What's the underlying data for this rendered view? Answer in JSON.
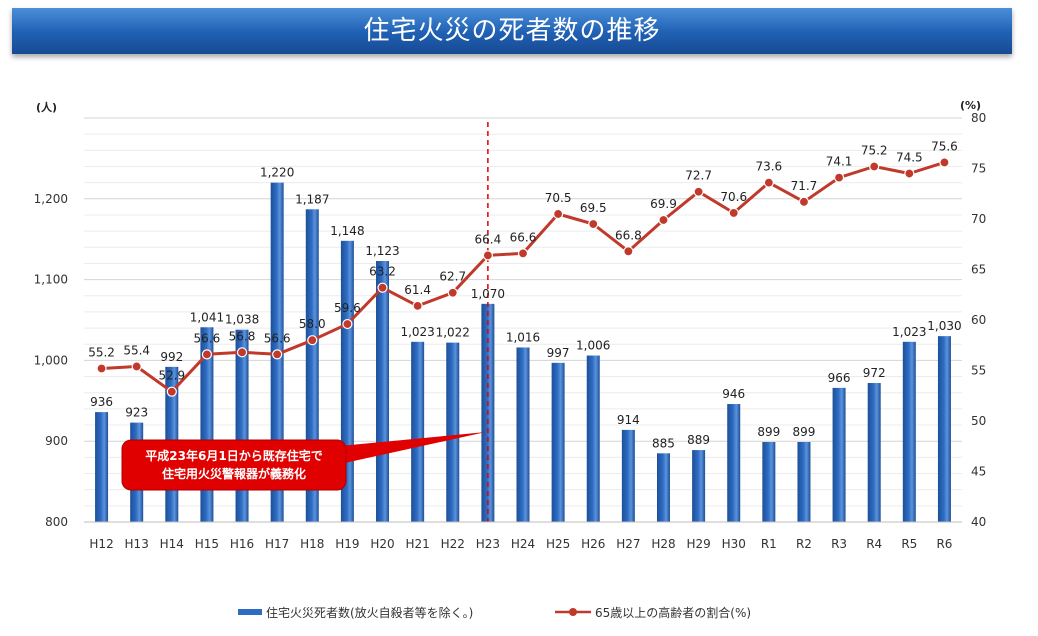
{
  "header": {
    "title": "住宅火災の死者数の推移"
  },
  "colors": {
    "bar": "#2e6cc2",
    "line": "#c0392b",
    "annotation": "#e00000",
    "banner": "#1f5fb3"
  },
  "chart_data": {
    "type": "bar",
    "categories": [
      "H12",
      "H13",
      "H14",
      "H15",
      "H16",
      "H17",
      "H18",
      "H19",
      "H20",
      "H21",
      "H22",
      "H23",
      "H24",
      "H25",
      "H26",
      "H27",
      "H28",
      "H29",
      "H30",
      "R1",
      "R2",
      "R3",
      "R4",
      "R5",
      "R6"
    ],
    "series": [
      {
        "name": "住宅火災死者数(放火自殺者等を除く。)",
        "type": "bar",
        "axis": "left",
        "values": [
          936,
          923,
          992,
          1041,
          1038,
          1220,
          1187,
          1148,
          1123,
          1023,
          1022,
          1070,
          1016,
          997,
          1006,
          914,
          885,
          889,
          946,
          899,
          899,
          966,
          972,
          1023,
          1030
        ],
        "labels": [
          "936",
          "923",
          "992",
          "1,041",
          "1,038",
          "1,220",
          "1,187",
          "1,148",
          "1,123",
          "1,023",
          "1,022",
          "1,070",
          "1,016",
          "997",
          "1,006",
          "914",
          "885",
          "889",
          "946",
          "899",
          "899",
          "966",
          "972",
          "1,023",
          "1,030"
        ]
      },
      {
        "name": "65歳以上の高齢者の割合(%)",
        "type": "line",
        "axis": "right",
        "values": [
          55.2,
          55.4,
          52.9,
          56.6,
          56.8,
          56.6,
          58.0,
          59.6,
          63.2,
          61.4,
          62.7,
          66.4,
          66.6,
          70.5,
          69.5,
          66.8,
          69.9,
          72.7,
          70.6,
          73.6,
          71.7,
          74.1,
          75.2,
          74.5,
          75.6
        ],
        "labels": [
          "55.2",
          "55.4",
          "52.9",
          "56.6",
          "56.8",
          "56.6",
          "58.0",
          "59.6",
          "63.2",
          "61.4",
          "62.7",
          "66.4",
          "66.6",
          "70.5",
          "69.5",
          "66.8",
          "69.9",
          "72.7",
          "70.6",
          "73.6",
          "71.7",
          "74.1",
          "75.2",
          "74.5",
          "75.6"
        ]
      }
    ],
    "y_left": {
      "unit_label": "(人)",
      "min": 800,
      "max": 1300,
      "ticks": [
        800,
        900,
        1000,
        1100,
        1200
      ],
      "tick_labels": [
        "800",
        "900",
        "1,000",
        "1,100",
        "1,200"
      ]
    },
    "y_right": {
      "unit_label": "(%)",
      "min": 40,
      "max": 80,
      "ticks": [
        40,
        45,
        50,
        55,
        60,
        65,
        70,
        75,
        80
      ],
      "tick_labels": [
        "40",
        "45",
        "50",
        "55",
        "60",
        "65",
        "70",
        "75",
        "80"
      ]
    },
    "grid": true,
    "legend": "bottom",
    "annotation": {
      "category": "H23",
      "lines": [
        "平成23年6月1日から既存住宅で",
        "住宅用火災警報器が義務化"
      ]
    }
  }
}
